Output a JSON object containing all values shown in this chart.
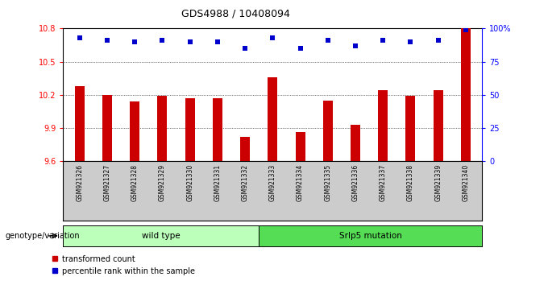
{
  "title": "GDS4988 / 10408094",
  "samples": [
    "GSM921326",
    "GSM921327",
    "GSM921328",
    "GSM921329",
    "GSM921330",
    "GSM921331",
    "GSM921332",
    "GSM921333",
    "GSM921334",
    "GSM921335",
    "GSM921336",
    "GSM921337",
    "GSM921338",
    "GSM921339",
    "GSM921340"
  ],
  "bar_values": [
    10.28,
    10.2,
    10.14,
    10.19,
    10.17,
    10.17,
    9.82,
    10.36,
    9.86,
    10.15,
    9.93,
    10.24,
    10.19,
    10.24,
    10.8
  ],
  "percentile_values": [
    93,
    91,
    90,
    91,
    90,
    90,
    85,
    93,
    85,
    91,
    87,
    91,
    90,
    91,
    99
  ],
  "bar_color": "#cc0000",
  "dot_color": "#0000cc",
  "y_min": 9.6,
  "y_max": 10.8,
  "y_ticks": [
    9.6,
    9.9,
    10.2,
    10.5,
    10.8
  ],
  "y_right_ticks": [
    0,
    25,
    50,
    75,
    100
  ],
  "y_right_labels": [
    "0",
    "25",
    "50",
    "75",
    "100%"
  ],
  "grid_values": [
    9.9,
    10.2,
    10.5
  ],
  "wild_type_count": 7,
  "mutation_count": 8,
  "wild_type_label": "wild type",
  "mutation_label": "Srlp5 mutation",
  "genotype_label": "genotype/variation",
  "legend_bar_label": "transformed count",
  "legend_dot_label": "percentile rank within the sample",
  "wild_type_color": "#bbffbb",
  "mutation_color": "#55dd55",
  "tick_area_color": "#cccccc"
}
